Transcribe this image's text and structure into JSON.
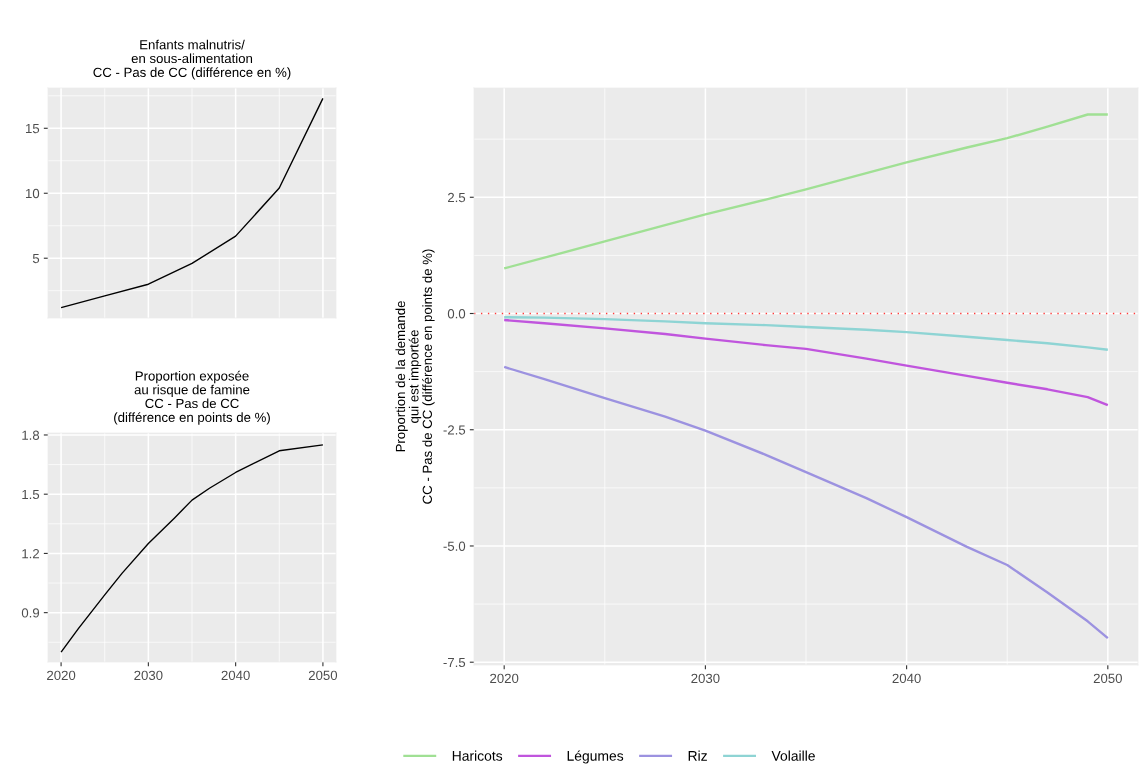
{
  "chart_data": [
    {
      "type": "line",
      "title": "Enfants malnutris/\nen sous-alimentation\nCC - Pas de CC (différence en %)",
      "x": [
        2020,
        2025,
        2030,
        2035,
        2040,
        2045,
        2050
      ],
      "series": [
        {
          "color": "#000000",
          "values": [
            1.2,
            2.1,
            3.0,
            4.6,
            6.7,
            10.4,
            17.3
          ]
        }
      ],
      "xlim": [
        2018.5,
        2051.5
      ],
      "xticks": [
        2020,
        2030,
        2040,
        2050
      ],
      "ylim": [
        0.4,
        18.1
      ],
      "yticks": [
        5,
        10,
        15
      ],
      "grid": true,
      "tick_labels": "y"
    },
    {
      "type": "line",
      "ylabel": "Proportion de la demande\nqui est importée\nCC - Pas de CC (différence en points de %)",
      "x": [
        2020,
        2022,
        2025,
        2028,
        2030,
        2033,
        2035,
        2038,
        2040,
        2043,
        2045,
        2047,
        2049,
        2050
      ],
      "series": [
        {
          "name": "Haricots",
          "color": "#a0e094",
          "values": [
            0.97,
            1.2,
            1.55,
            1.9,
            2.13,
            2.45,
            2.67,
            3.02,
            3.25,
            3.57,
            3.77,
            4.02,
            4.28,
            4.28
          ]
        },
        {
          "name": "Légumes",
          "color": "#c055dd",
          "values": [
            -0.14,
            -0.21,
            -0.32,
            -0.44,
            -0.54,
            -0.68,
            -0.76,
            -0.97,
            -1.12,
            -1.34,
            -1.49,
            -1.63,
            -1.8,
            -1.97
          ]
        },
        {
          "name": "Riz",
          "color": "#9c92e0",
          "values": [
            -1.15,
            -1.41,
            -1.82,
            -2.22,
            -2.52,
            -3.04,
            -3.41,
            -3.97,
            -4.38,
            -5.02,
            -5.41,
            -6.0,
            -6.62,
            -6.98
          ]
        },
        {
          "name": "Volaille",
          "color": "#8ed4d4",
          "values": [
            -0.08,
            -0.09,
            -0.12,
            -0.17,
            -0.21,
            -0.25,
            -0.29,
            -0.35,
            -0.4,
            -0.5,
            -0.57,
            -0.64,
            -0.73,
            -0.78
          ]
        }
      ],
      "xlim": [
        2018.5,
        2051.5
      ],
      "xticks": [
        2020,
        2030,
        2040,
        2050
      ],
      "ylim": [
        -7.56,
        4.85
      ],
      "yticks": [
        {
          "value": -7.5,
          "label": "-7.5"
        },
        {
          "value": -5,
          "label": "-5.0"
        },
        {
          "value": -2.5,
          "label": "-2.5"
        },
        {
          "value": 0,
          "label": "0.0"
        },
        {
          "value": 2.5,
          "label": "2.5"
        }
      ],
      "ref_lines": [
        {
          "axis": "y",
          "value": 0,
          "color": "#ff3b3b",
          "line_style": "dotted"
        }
      ],
      "grid": true,
      "legend": "bottom"
    },
    {
      "type": "line",
      "title": "Proportion exposée\nau risque de famine\nCC - Pas de CC\n(différence en points de %)",
      "x": [
        2020,
        2022,
        2025,
        2027,
        2030,
        2033,
        2035,
        2037,
        2040,
        2045,
        2050
      ],
      "series": [
        {
          "color": "#000000",
          "values": [
            0.7,
            0.82,
            0.99,
            1.1,
            1.25,
            1.38,
            1.47,
            1.53,
            1.61,
            1.72,
            1.75
          ]
        }
      ],
      "xlim": [
        2018.5,
        2051.5
      ],
      "xticks": [
        2020,
        2030,
        2040,
        2050
      ],
      "ylim": [
        0.65,
        1.81
      ],
      "yticks": [
        0.9,
        1.2,
        1.5,
        1.8
      ],
      "grid": true
    }
  ]
}
